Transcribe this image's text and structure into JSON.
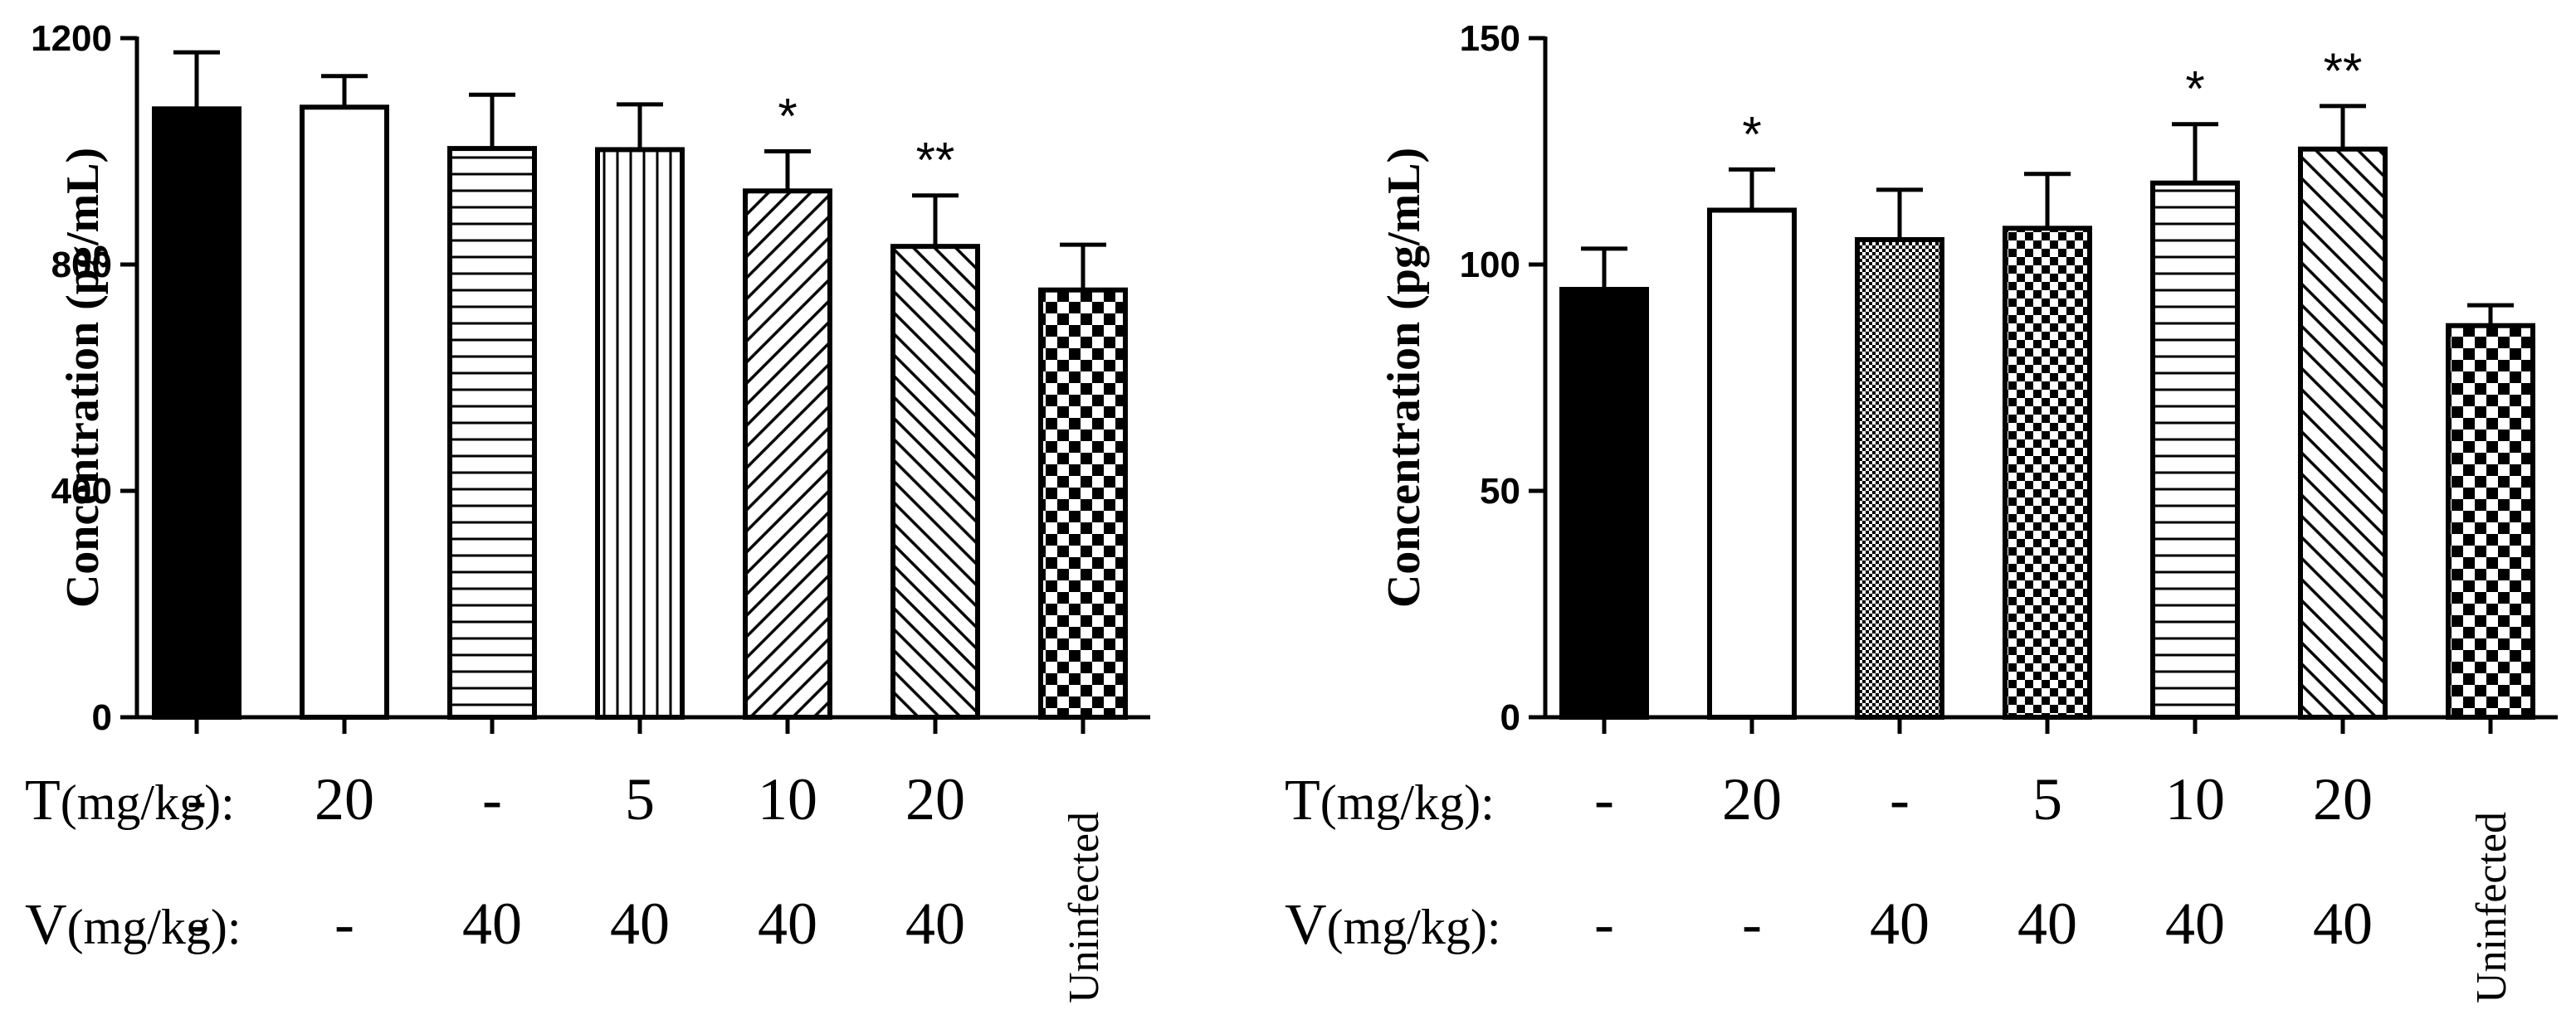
{
  "chart_data": [
    {
      "type": "bar",
      "ylabel": "Concentration (pg/mL)",
      "ylim": [
        0,
        1200
      ],
      "yticks": [
        "0",
        "400",
        "800",
        "1200"
      ],
      "row_labels": [
        {
          "letter": "T",
          "unit": "(mg/kg):"
        },
        {
          "letter": "V",
          "unit": "(mg/kg):"
        }
      ],
      "categories": [
        {
          "T": "-",
          "V": "-",
          "vertical": "",
          "value": 1075,
          "error": 100,
          "sig": "",
          "pattern": "solid"
        },
        {
          "T": "20",
          "V": "-",
          "vertical": "",
          "value": 1078,
          "error": 55,
          "sig": "",
          "pattern": "white"
        },
        {
          "T": "-",
          "V": "40",
          "vertical": "",
          "value": 1005,
          "error": 95,
          "sig": "",
          "pattern": "hlines"
        },
        {
          "T": "5",
          "V": "40",
          "vertical": "",
          "value": 1003,
          "error": 80,
          "sig": "",
          "pattern": "vlines"
        },
        {
          "T": "10",
          "V": "40",
          "vertical": "",
          "value": 930,
          "error": 70,
          "sig": "*",
          "pattern": "diag-right"
        },
        {
          "T": "20",
          "V": "40",
          "vertical": "",
          "value": 832,
          "error": 90,
          "sig": "**",
          "pattern": "diag-left"
        },
        {
          "T": "",
          "V": "",
          "vertical": "Uninfected",
          "value": 755,
          "error": 80,
          "sig": "",
          "pattern": "checker-large"
        }
      ]
    },
    {
      "type": "bar",
      "ylabel": "Concentration (pg/mL)",
      "ylim": [
        0,
        150
      ],
      "yticks": [
        "0",
        "50",
        "100",
        "150"
      ],
      "row_labels": [
        {
          "letter": "T",
          "unit": "(mg/kg):"
        },
        {
          "letter": "V",
          "unit": "(mg/kg):"
        }
      ],
      "categories": [
        {
          "T": "-",
          "V": "-",
          "vertical": "",
          "value": 94.5,
          "error": 9,
          "sig": "",
          "pattern": "solid"
        },
        {
          "T": "20",
          "V": "-",
          "vertical": "",
          "value": 112,
          "error": 9,
          "sig": "*",
          "pattern": "white"
        },
        {
          "T": "-",
          "V": "40",
          "vertical": "",
          "value": 105.5,
          "error": 11,
          "sig": "",
          "pattern": "checker-small"
        },
        {
          "T": "5",
          "V": "40",
          "vertical": "",
          "value": 108,
          "error": 12,
          "sig": "",
          "pattern": "checker-medium"
        },
        {
          "T": "10",
          "V": "40",
          "vertical": "",
          "value": 118,
          "error": 13,
          "sig": "*",
          "pattern": "hlines"
        },
        {
          "T": "20",
          "V": "40",
          "vertical": "",
          "value": 125.5,
          "error": 9.5,
          "sig": "**",
          "pattern": "diag-left"
        },
        {
          "T": "",
          "V": "",
          "vertical": "Uninfected",
          "value": 86.5,
          "error": 4.5,
          "sig": "",
          "pattern": "checker-large"
        }
      ]
    }
  ]
}
